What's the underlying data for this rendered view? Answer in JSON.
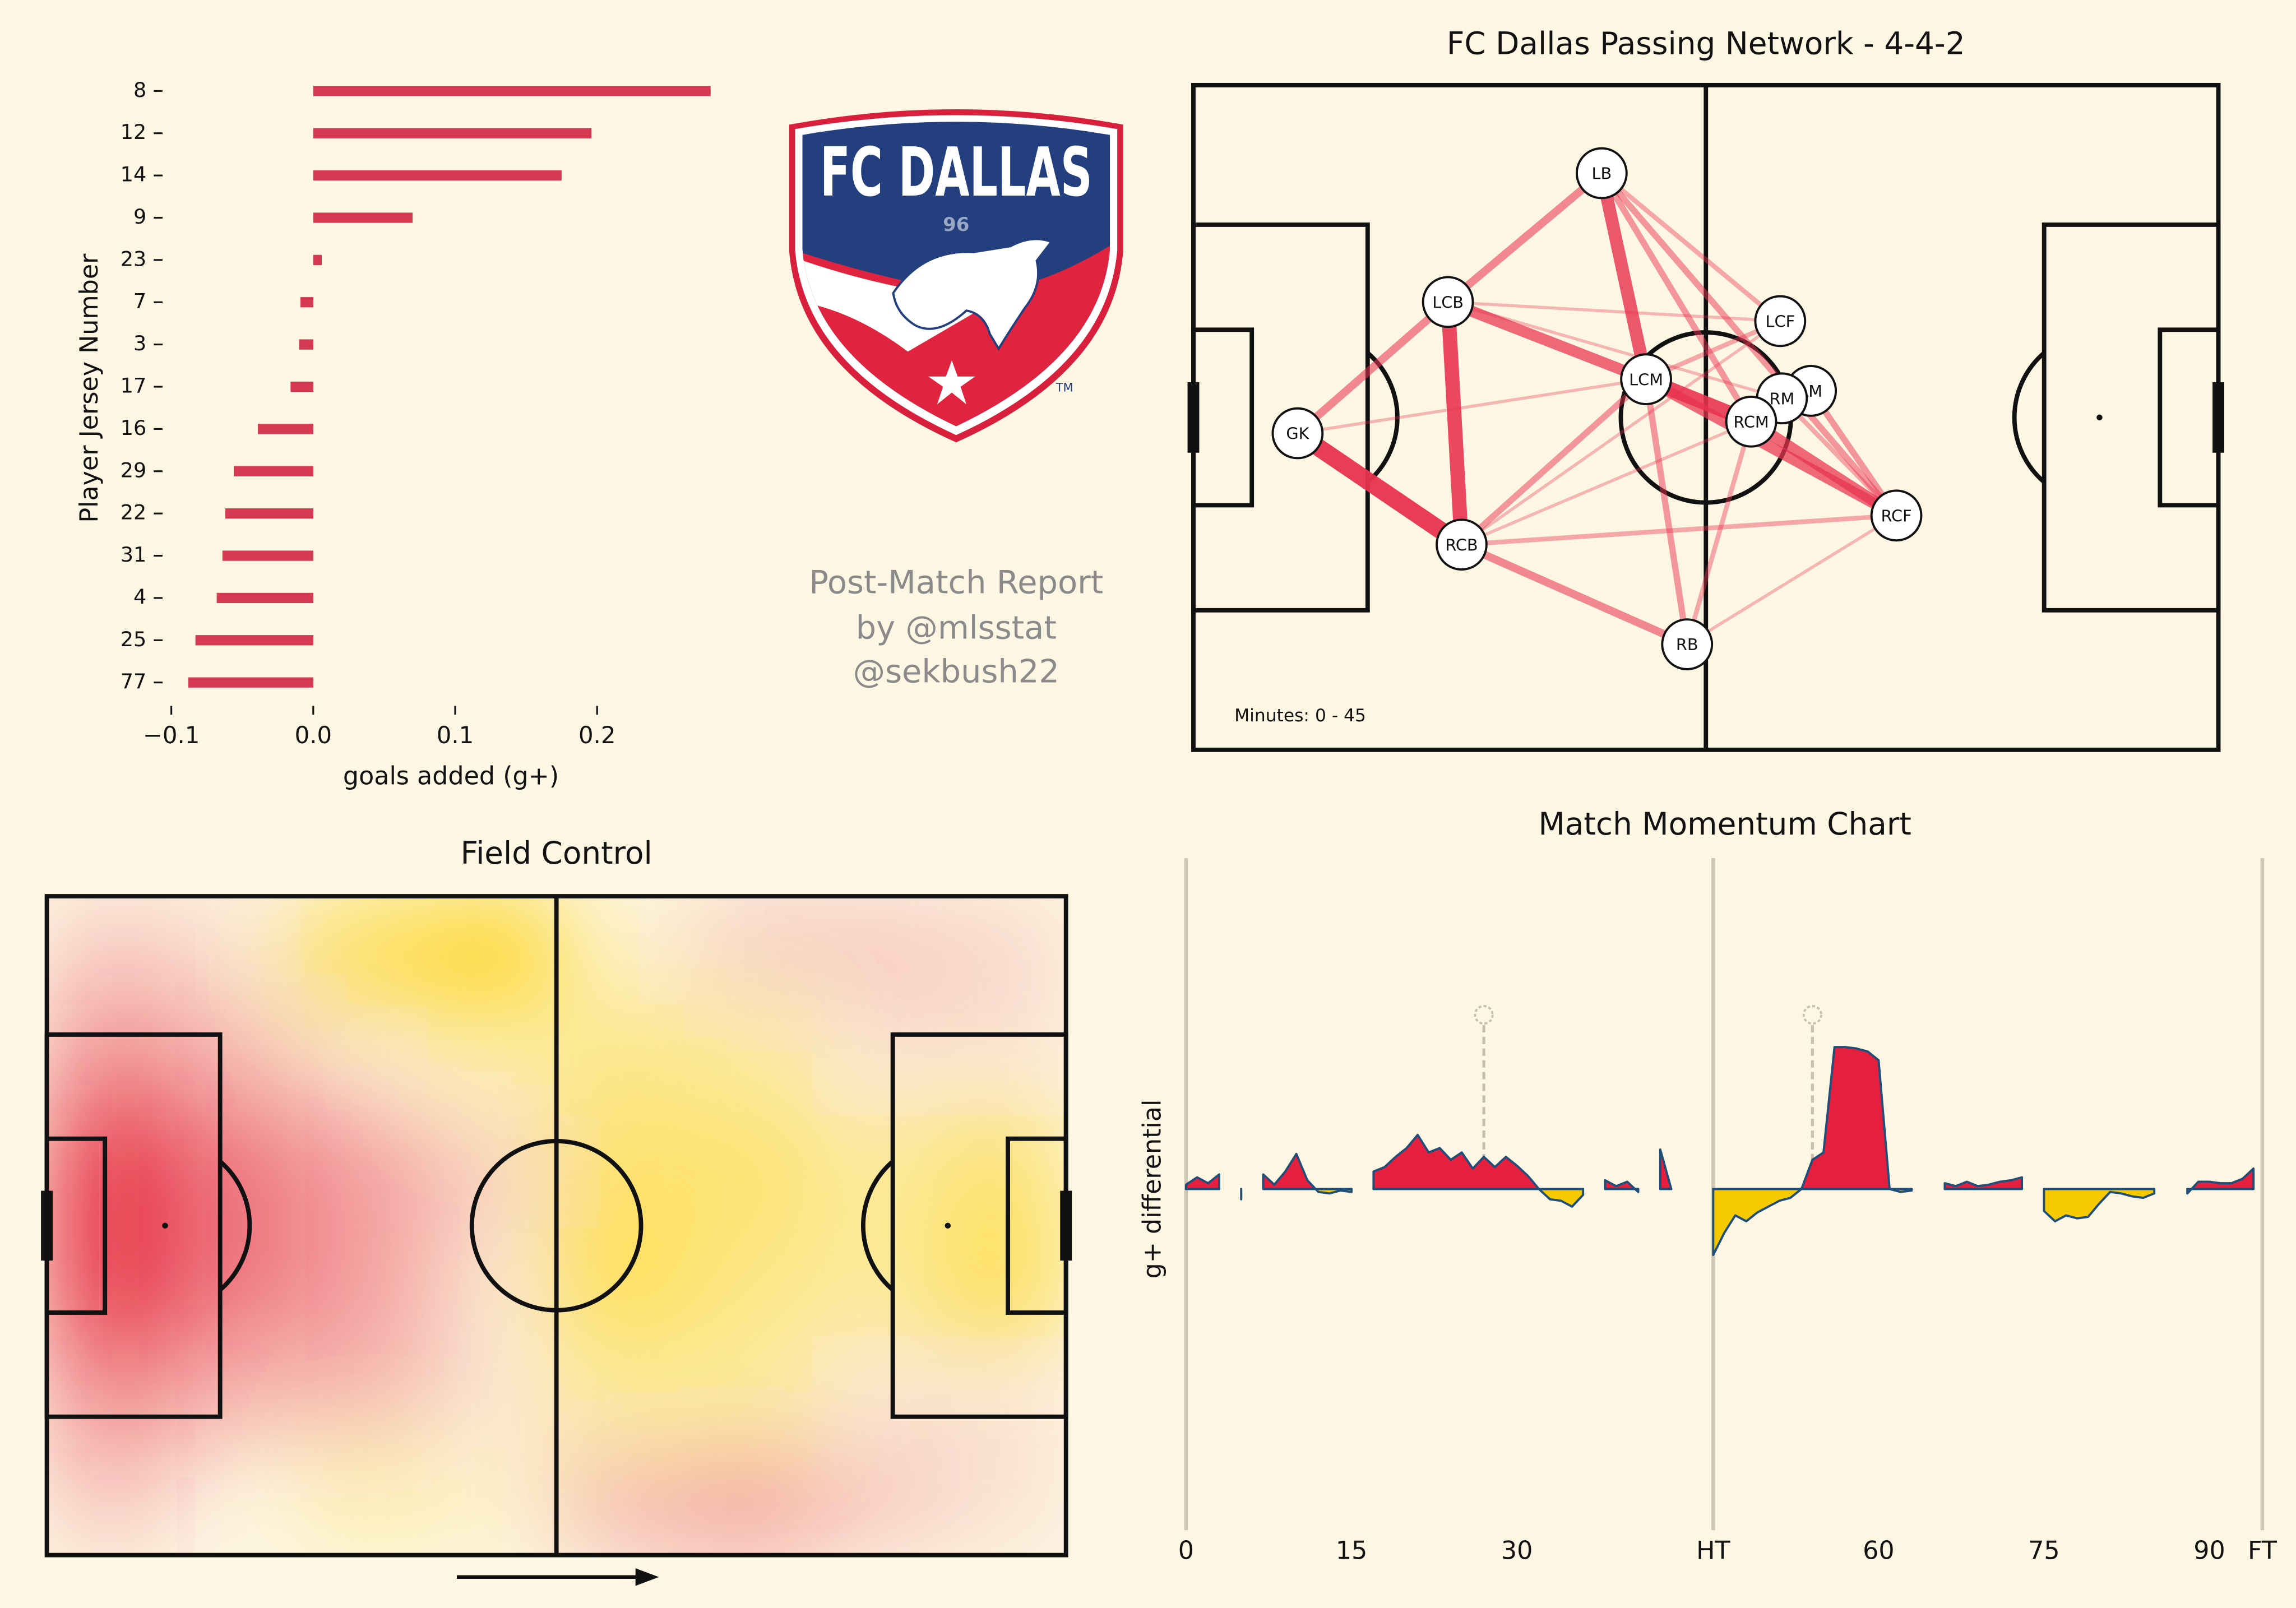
{
  "chart_data": [
    {
      "type": "hbar",
      "categories": [
        "8",
        "12",
        "14",
        "9",
        "23",
        "7",
        "3",
        "17",
        "16",
        "29",
        "22",
        "31",
        "4",
        "25",
        "77"
      ],
      "values": [
        0.28,
        0.196,
        0.175,
        0.07,
        0.006,
        -0.009,
        -0.01,
        -0.016,
        -0.039,
        -0.056,
        -0.062,
        -0.064,
        -0.068,
        -0.083,
        -0.088
      ],
      "color": "#d63a52",
      "xlim": [
        -0.1,
        0.29
      ],
      "xticks": [
        {
          "value": -0.1,
          "label": "−0.1"
        },
        {
          "value": 0,
          "label": "0.0"
        },
        0.1,
        0.2
      ],
      "xlabel": "goals added (g+)",
      "ylabel": "Player Jersey Number"
    },
    {
      "type": "network",
      "title": "FC Dallas Passing Network - 4-4-2",
      "annotation": "Minutes: 0 - 45",
      "xlim": [
        0,
        120
      ],
      "ylim": [
        0,
        80
      ],
      "color": "#e8334f",
      "nodes": [
        {
          "label": "LB",
          "x": 47.8,
          "y": 10.6
        },
        {
          "label": "LCB",
          "x": 29.8,
          "y": 26.1
        },
        {
          "label": "GK",
          "x": 12.2,
          "y": 41.9
        },
        {
          "label": "RCB",
          "x": 31.4,
          "y": 55.3
        },
        {
          "label": "RB",
          "x": 57.8,
          "y": 67.3
        },
        {
          "label": "LCM",
          "x": 53.0,
          "y": 35.4
        },
        {
          "label": "LCF",
          "x": 68.7,
          "y": 28.4
        },
        {
          "label": "LM",
          "x": 72.3,
          "y": 36.8
        },
        {
          "label": "RM",
          "x": 68.9,
          "y": 37.7
        },
        {
          "label": "RCM",
          "x": 65.3,
          "y": 40.5
        },
        {
          "label": "RCF",
          "x": 82.3,
          "y": 51.8
        }
      ],
      "edges": [
        {
          "from": "GK",
          "to": "RCB",
          "value": 10
        },
        {
          "from": "LCB",
          "to": "RCB",
          "value": 8
        },
        {
          "from": "LB",
          "to": "LCM",
          "value": 7
        },
        {
          "from": "LCM",
          "to": "RCM",
          "value": 8
        },
        {
          "from": "LCM",
          "to": "RCF",
          "value": 6
        },
        {
          "from": "RCM",
          "to": "RCF",
          "value": 6
        },
        {
          "from": "LCB",
          "to": "LCM",
          "value": 6
        },
        {
          "from": "GK",
          "to": "LCB",
          "value": 4
        },
        {
          "from": "LCB",
          "to": "LB",
          "value": 4
        },
        {
          "from": "RCB",
          "to": "RB",
          "value": 4
        },
        {
          "from": "RB",
          "to": "LCM",
          "value": 3
        },
        {
          "from": "LB",
          "to": "RCF",
          "value": 3
        },
        {
          "from": "LB",
          "to": "RCM",
          "value": 3
        },
        {
          "from": "LB",
          "to": "LCF",
          "value": 2
        },
        {
          "from": "RCB",
          "to": "LCM",
          "value": 3
        },
        {
          "from": "RCB",
          "to": "RCF",
          "value": 2
        },
        {
          "from": "RB",
          "to": "RCM",
          "value": 2
        },
        {
          "from": "LCB",
          "to": "RM",
          "value": 1
        },
        {
          "from": "LCB",
          "to": "LCF",
          "value": 1
        },
        {
          "from": "GK",
          "to": "LCM",
          "value": 1
        },
        {
          "from": "RCB",
          "to": "LCF",
          "value": 1
        },
        {
          "from": "RB",
          "to": "RCF",
          "value": 1
        },
        {
          "from": "LCM",
          "to": "LCF",
          "value": 2
        },
        {
          "from": "RCM",
          "to": "LM",
          "value": 3
        },
        {
          "from": "LM",
          "to": "RCF",
          "value": 3
        },
        {
          "from": "RM",
          "to": "RCF",
          "value": 2
        },
        {
          "from": "RCB",
          "to": "RCM",
          "value": 1
        }
      ]
    },
    {
      "type": "heatmap",
      "title": "Field Control",
      "colors": {
        "positive": "#e5283f",
        "negative": "#fdd000"
      },
      "values": [
        [
          0.2,
          0.1,
          -0.6,
          -0.8,
          -0.1,
          0.2,
          0.2,
          0.15
        ],
        [
          0.5,
          0.3,
          0.1,
          -0.2,
          -0.4,
          -0.3,
          0.1,
          0.1
        ],
        [
          0.9,
          0.6,
          0.4,
          0.2,
          -0.5,
          -0.5,
          -0.3,
          -0.5
        ],
        [
          0.9,
          0.6,
          0.4,
          0.1,
          -0.6,
          -0.4,
          -0.3,
          -0.6
        ],
        [
          0.5,
          0.3,
          0.3,
          0.1,
          -0.3,
          -0.3,
          0.1,
          0.1
        ],
        [
          0.2,
          0.0,
          -0.2,
          -0.1,
          0.3,
          0.4,
          0.2,
          0.1
        ]
      ]
    },
    {
      "type": "momentum",
      "title": "Match Momentum Chart",
      "ylabel": "g+ differential",
      "ylim": [
        -2.28,
        2.22
      ],
      "colors": {
        "positive": "#e5203f",
        "negative": "#f5cb00",
        "line": "#1f4e79"
      },
      "halves": [
        {
          "xlim": [
            0,
            47.8
          ],
          "xticks": [
            0,
            15,
            30,
            {
              "value": 47.8,
              "label": "HT"
            }
          ],
          "goals": [
            27
          ],
          "x": [
            0,
            1,
            2,
            3,
            4,
            5,
            6,
            7,
            8,
            9,
            10,
            11,
            12,
            13,
            14,
            15,
            16,
            17,
            18,
            19,
            20,
            21,
            22,
            23,
            24,
            25,
            26,
            27,
            28,
            29,
            30,
            31,
            32,
            33,
            34,
            35,
            36,
            37,
            38,
            39,
            40,
            41,
            42,
            43,
            44,
            45,
            46,
            47
          ],
          "values": [
            0.03,
            0.08,
            0.04,
            0.1,
            null,
            -0.07,
            null,
            0.1,
            0.03,
            0.12,
            0.24,
            0.06,
            -0.02,
            -0.03,
            -0.01,
            -0.02,
            null,
            0.12,
            0.15,
            0.22,
            0.28,
            0.37,
            0.25,
            0.28,
            0.2,
            0.25,
            0.14,
            0.22,
            0.15,
            0.22,
            0.16,
            0.09,
            0,
            -0.07,
            -0.08,
            -0.12,
            -0.04,
            null,
            0.06,
            0.02,
            0.05,
            -0.02,
            null,
            0.27,
            0,
            null,
            null,
            null
          ]
        },
        {
          "xlim": [
            45,
            94.8
          ],
          "xticks": [
            60,
            75,
            90,
            {
              "value": 94.8,
              "label": "FT"
            }
          ],
          "goals": [
            54
          ],
          "x": [
            45,
            46,
            47,
            48,
            49,
            50,
            51,
            52,
            53,
            54,
            55,
            56,
            57,
            58,
            59,
            60,
            61,
            62,
            63,
            64,
            65,
            66,
            67,
            68,
            69,
            70,
            71,
            72,
            73,
            74,
            75,
            76,
            77,
            78,
            79,
            80,
            81,
            82,
            83,
            84,
            85,
            86,
            87,
            88,
            89,
            90,
            91,
            92,
            93,
            94
          ],
          "values": [
            -0.45,
            -0.3,
            -0.18,
            -0.22,
            -0.16,
            -0.12,
            -0.08,
            -0.06,
            0,
            0.2,
            0.25,
            0.97,
            0.97,
            0.96,
            0.94,
            0.88,
            0,
            -0.02,
            -0.01,
            null,
            null,
            0.04,
            0.02,
            0.05,
            0.02,
            0.03,
            0.05,
            0.06,
            0.08,
            null,
            -0.15,
            -0.22,
            -0.18,
            -0.2,
            -0.19,
            -0.1,
            -0.02,
            -0.03,
            -0.05,
            -0.06,
            -0.03,
            null,
            null,
            -0.03,
            0.05,
            0.05,
            0.04,
            0.04,
            0.07,
            0.14
          ]
        }
      ]
    }
  ],
  "logo": {
    "name": "FC DALLAS",
    "year": "96",
    "mark": "TM"
  },
  "credits": [
    "Post-Match Report",
    "by @mlsstat",
    "@sekbush22"
  ]
}
